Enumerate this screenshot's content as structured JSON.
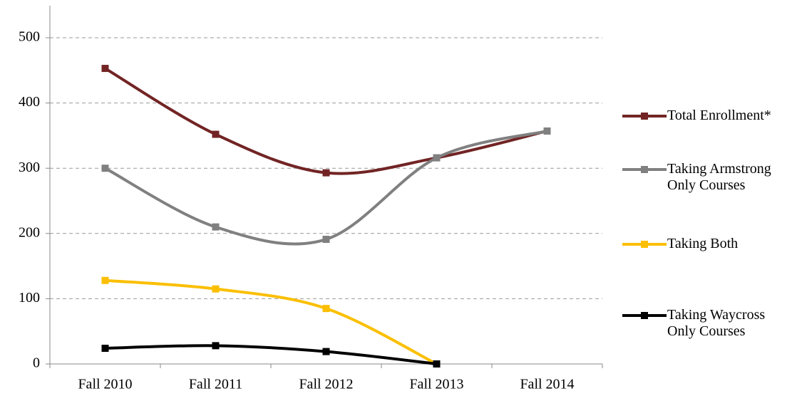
{
  "chart_data": {
    "type": "line",
    "categories": [
      "Fall 2010",
      "Fall 2011",
      "Fall 2012",
      "Fall 2013",
      "Fall 2014"
    ],
    "series": [
      {
        "name": "Total Enrollment*",
        "color": "#722424",
        "values": [
          453,
          352,
          293,
          316,
          357
        ]
      },
      {
        "name": "Taking Armstrong Only Courses",
        "color": "#808080",
        "values": [
          300,
          210,
          191,
          316,
          357
        ]
      },
      {
        "name": "Taking Both",
        "color": "#fbbf00",
        "values": [
          128,
          115,
          85,
          0,
          null
        ]
      },
      {
        "name": "Taking Waycross Only Courses",
        "color": "#000000",
        "values": [
          24,
          28,
          19,
          0,
          null
        ]
      }
    ],
    "ylim": [
      0,
      500
    ],
    "yticks": [
      0,
      100,
      200,
      300,
      400,
      500
    ],
    "grid": true,
    "smooth": true,
    "legend": "right"
  }
}
